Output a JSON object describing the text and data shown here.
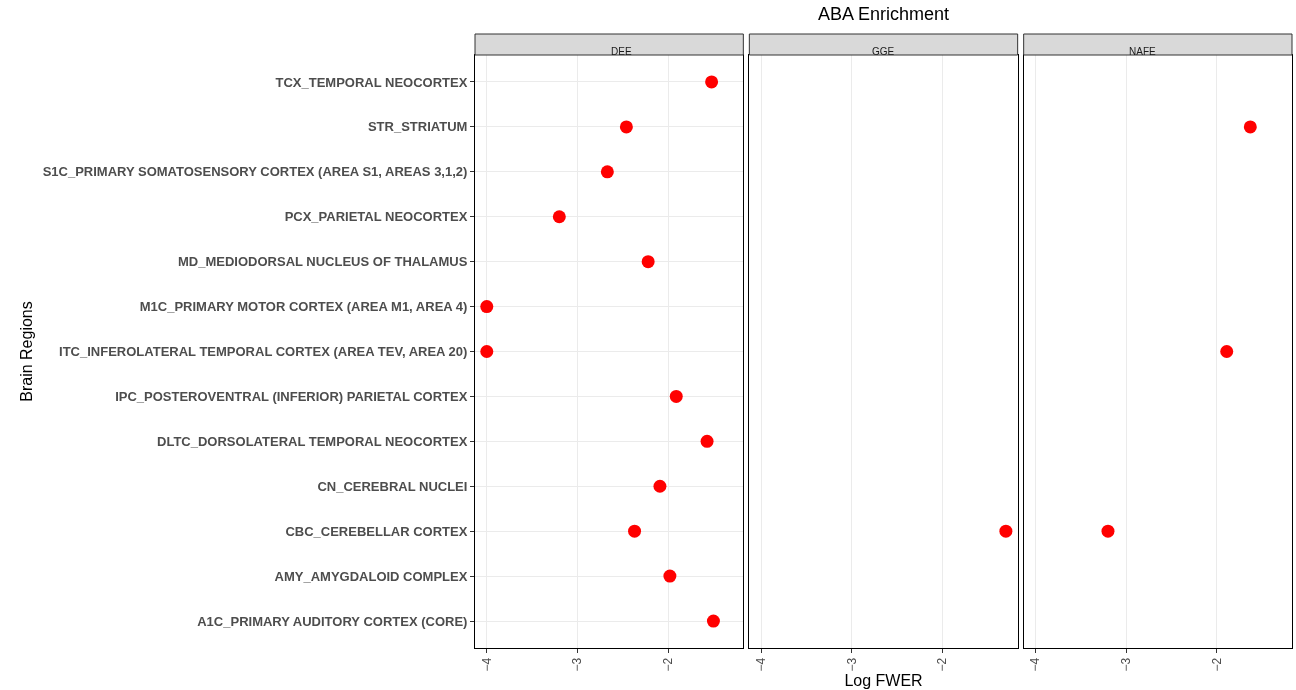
{
  "chart_data": [
    {
      "type": "scatter",
      "orientation": "horizontal",
      "title": "DEE",
      "ylabel": "Brain Regions",
      "categories": [
        "TCX_TEMPORAL NEOCORTEX",
        "STR_STRIATUM",
        "S1C_PRIMARY SOMATOSENSORY CORTEX (AREA S1, AREAS 3,1,2)",
        "PCX_PARIETAL NEOCORTEX",
        "MD_MEDIODORSAL NUCLEUS OF THALAMUS",
        "M1C_PRIMARY MOTOR CORTEX (AREA M1, AREA 4)",
        "ITC_INFEROLATERAL TEMPORAL CORTEX (AREA TEV, AREA 20)",
        "IPC_POSTEROVENTRAL (INFERIOR) PARIETAL CORTEX",
        "DLTC_DORSOLATERAL TEMPORAL NEOCORTEX",
        "CN_CEREBRAL NUCLEI",
        "CBC_CEREBELLAR CORTEX",
        "AMY_AMYGDALOID COMPLEX",
        "A1C_PRIMARY AUDITORY CORTEX (CORE)"
      ],
      "series": [
        {
          "color": "#ff0000",
          "values": [
            -1.52,
            -2.46,
            -2.67,
            -3.2,
            -2.22,
            -4.0,
            -4.0,
            -1.91,
            -1.57,
            -2.09,
            -2.37,
            -1.98,
            -1.5
          ]
        }
      ],
      "xlim": [
        -4.13,
        -1.17
      ],
      "xticks": [
        {
          "value": -4,
          "label": "−4"
        },
        {
          "value": -3,
          "label": "−3"
        },
        {
          "value": -2,
          "label": "−2"
        }
      ],
      "grid": true,
      "marker": "circle"
    },
    {
      "type": "scatter",
      "orientation": "horizontal",
      "title": "GGE",
      "xlabel": "Log FWER",
      "annotations": [
        "ABA Enrichment"
      ],
      "categories": [
        null,
        null,
        null,
        null,
        null,
        null,
        null,
        null,
        null,
        null,
        null,
        null,
        null
      ],
      "series": [
        {
          "color": "#ff0000",
          "values": [
            null,
            null,
            null,
            null,
            null,
            null,
            null,
            null,
            null,
            null,
            -1.3,
            null,
            null
          ]
        }
      ],
      "xlim": [
        -4.13,
        -1.17
      ],
      "xticks": [
        {
          "value": -4,
          "label": "−4"
        },
        {
          "value": -3,
          "label": "−3"
        },
        {
          "value": -2,
          "label": "−2"
        }
      ],
      "grid": true,
      "marker": "circle",
      "tick_labels": "x"
    },
    {
      "type": "scatter",
      "orientation": "horizontal",
      "title": "NAFE",
      "categories": [
        null,
        null,
        null,
        null,
        null,
        null,
        null,
        null,
        null,
        null,
        null,
        null,
        null
      ],
      "series": [
        {
          "color": "#ff0000",
          "values": [
            null,
            -1.63,
            null,
            null,
            null,
            null,
            -1.89,
            null,
            null,
            null,
            -3.2,
            null,
            null
          ]
        }
      ],
      "xlim": [
        -4.13,
        -1.17
      ],
      "xticks": [
        {
          "value": -4,
          "label": "−4"
        },
        {
          "value": -3,
          "label": "−3"
        },
        {
          "value": -2,
          "label": "−2"
        }
      ],
      "grid": true,
      "marker": "circle",
      "tick_labels": "x"
    }
  ]
}
